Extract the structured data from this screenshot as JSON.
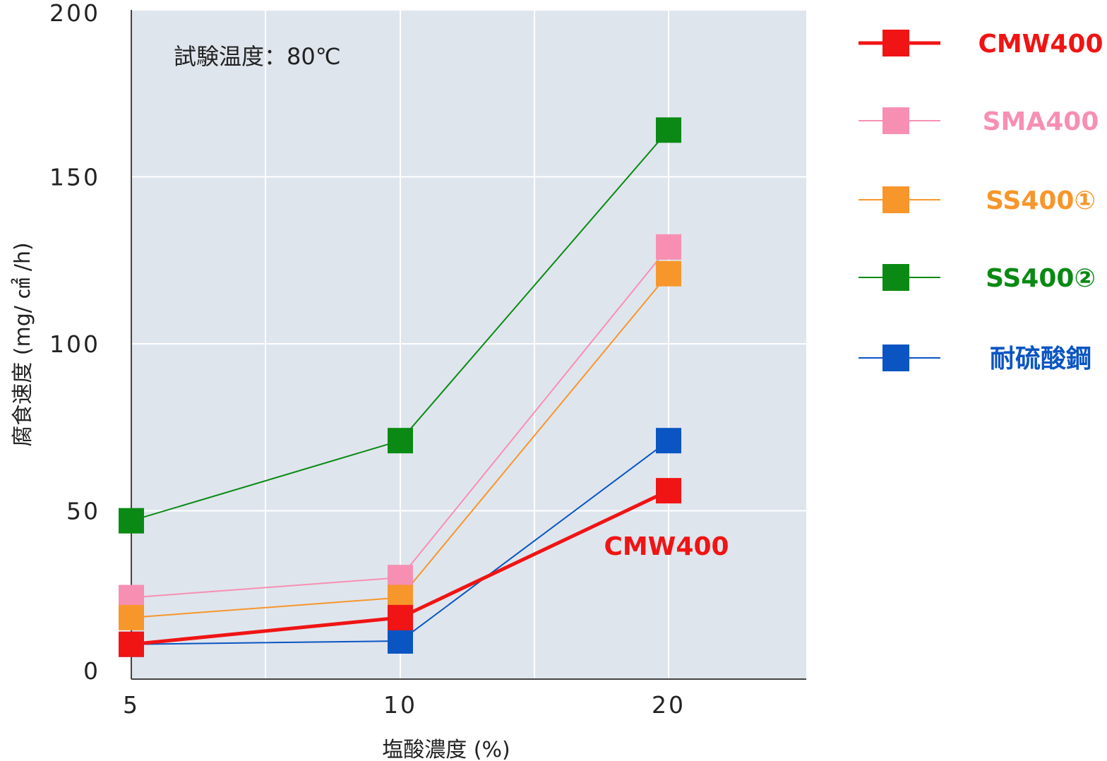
{
  "chart_data": {
    "type": "line",
    "annotation": "試験温度：80℃",
    "xlabel": "塩酸濃度 (%)",
    "ylabel": "腐食速度 (mg/ ㎠ /h)",
    "categories": [
      "5",
      "10",
      "20"
    ],
    "ylim": [
      0,
      200
    ],
    "yticks": [
      0,
      50,
      100,
      150,
      200
    ],
    "grid": true,
    "legend_position": "right",
    "inline_label": "CMW400",
    "series": [
      {
        "name": "SS400②",
        "color": "#0a8a14",
        "values": [
          47,
          71,
          164
        ]
      },
      {
        "name": "SMA400",
        "color": "#f78fb3",
        "values": [
          24,
          30,
          129
        ]
      },
      {
        "name": "SS400①",
        "color": "#f7962b",
        "values": [
          18,
          24,
          121
        ]
      },
      {
        "name": "耐硫酸鋼",
        "color": "#0a55c2",
        "values": [
          10,
          11,
          71
        ]
      },
      {
        "name": "CMW400",
        "color": "#f01414",
        "values": [
          10,
          18,
          56
        ]
      }
    ],
    "legend_order": [
      "CMW400",
      "SMA400",
      "SS400①",
      "SS400②",
      "耐硫酸鋼"
    ]
  }
}
